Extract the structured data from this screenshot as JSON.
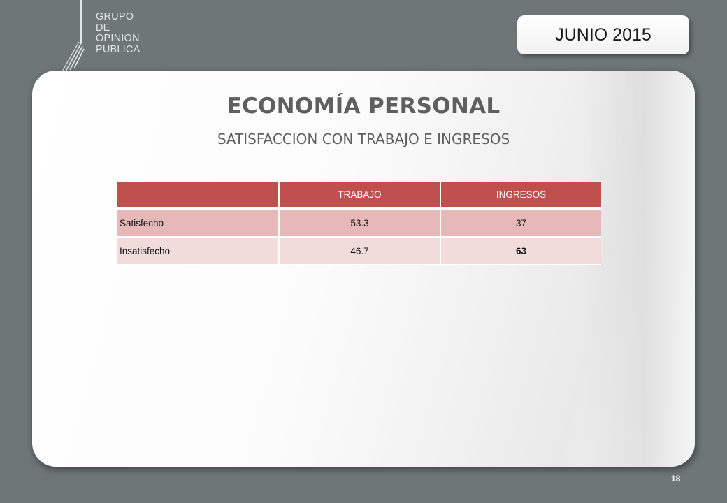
{
  "logo": {
    "lines": [
      "GRUPO",
      "DE",
      "OPINION",
      "PUBLICA"
    ]
  },
  "header": {
    "date": "JUNIO 2015"
  },
  "slide": {
    "title": "ECONOMÍA PERSONAL",
    "subtitle": "SATISFACCION CON TRABAJO E INGRESOS"
  },
  "table": {
    "headers": [
      "",
      "TRABAJO",
      "INGRESOS"
    ],
    "rows": [
      {
        "label": "Satisfecho",
        "trabajo": "53.3",
        "ingresos": "37"
      },
      {
        "label": "Insatisfecho",
        "trabajo": "46.7",
        "ingresos": "63"
      }
    ]
  },
  "footer": {
    "page_number": "18"
  },
  "colors": {
    "background": "#6f7677",
    "header_fill": "#c0504d",
    "row_odd": "#e6b9b8",
    "row_even": "#f2dcdb"
  }
}
